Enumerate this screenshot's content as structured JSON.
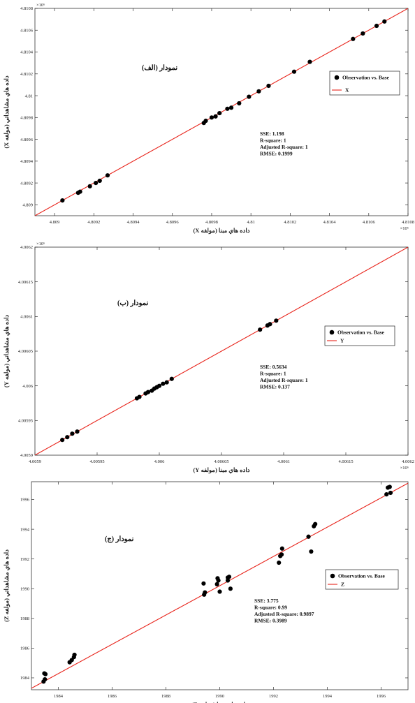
{
  "colors": {
    "points": "#000000",
    "fit_line": "#e8231a",
    "axes": "#333333",
    "background": "#ffffff"
  },
  "chart_data": [
    {
      "type": "scatter",
      "panel_label": "نمودار (الف)",
      "xlabel": "داده هاي مبنا (مولفه X)",
      "ylabel": "داده هاي مشاهداتي (مولفه X)",
      "x_exponent": "×10⁶",
      "y_exponent": "×10⁶",
      "xlim": [
        4.8089,
        4.8108
      ],
      "ylim": [
        4.8089,
        4.8108
      ],
      "x_ticks": [
        4.809,
        4.8092,
        4.8094,
        4.8096,
        4.8098,
        4.81,
        4.8102,
        4.8104,
        4.8106,
        4.8108
      ],
      "x_tick_labels": [
        "4.809",
        "4.8092",
        "4.8094",
        "4.8096",
        "4.8098",
        "4.81",
        "4.8102",
        "4.8104",
        "4.8106",
        "4.8108"
      ],
      "y_ticks": [
        4.809,
        4.8092,
        4.8094,
        4.8096,
        4.8098,
        4.81,
        4.8102,
        4.8104,
        4.8106,
        4.8108
      ],
      "y_tick_labels": [
        "4.809",
        "4.8092",
        "4.8094",
        "4.8096",
        "4.8098",
        "4.81",
        "4.8102",
        "4.8104",
        "4.8106",
        "4.8108"
      ],
      "legend": {
        "position": "top-right",
        "points_label": "Observation vs. Base",
        "line_label": "X"
      },
      "stats": [
        "SSE: 1.198",
        "R-square: 1",
        "Adjusted R-square: 1",
        "RMSE: 0.1999"
      ],
      "fit_line": {
        "x": [
          4.8089,
          4.8108
        ],
        "y": [
          4.8089,
          4.8108
        ]
      },
      "points": [
        [
          4.80904,
          4.80904
        ],
        [
          4.80912,
          4.80911
        ],
        [
          4.80913,
          4.80912
        ],
        [
          4.80918,
          4.80917
        ],
        [
          4.80921,
          4.8092
        ],
        [
          4.80923,
          4.80922
        ],
        [
          4.80927,
          4.80927
        ],
        [
          4.80976,
          4.80975
        ],
        [
          4.80977,
          4.80977
        ],
        [
          4.8098,
          4.8098
        ],
        [
          4.80982,
          4.80981
        ],
        [
          4.80984,
          4.80984
        ],
        [
          4.80988,
          4.80988
        ],
        [
          4.8099,
          4.80989
        ],
        [
          4.80994,
          4.80993
        ],
        [
          4.80999,
          4.80999
        ],
        [
          4.81004,
          4.81004
        ],
        [
          4.81009,
          4.81009
        ],
        [
          4.81022,
          4.81022
        ],
        [
          4.8103,
          4.81031
        ],
        [
          4.81052,
          4.81052
        ],
        [
          4.81057,
          4.81057
        ],
        [
          4.81064,
          4.81064
        ],
        [
          4.81068,
          4.81068
        ]
      ]
    },
    {
      "type": "scatter",
      "panel_label": "نمودار (ب)",
      "xlabel": "داده هاي مبنا (مولفه Y)",
      "ylabel": "داده هاي مشاهداتي (مولفه Y)",
      "x_exponent": "×10⁶",
      "y_exponent": "×10⁶",
      "xlim": [
        4.0059,
        4.0062
      ],
      "ylim": [
        4.0059,
        4.0062
      ],
      "x_ticks": [
        4.0059,
        4.00595,
        4.006,
        4.00605,
        4.0061,
        4.00615,
        4.0062
      ],
      "x_tick_labels": [
        "4.0059",
        "4.00595",
        "4.006",
        "4.00605",
        "4.0061",
        "4.00615",
        "4.0062"
      ],
      "y_ticks": [
        4.0059,
        4.00595,
        4.006,
        4.00605,
        4.0061,
        4.00615,
        4.0062
      ],
      "y_tick_labels": [
        "4.0059",
        "4.00595",
        "4.006",
        "4.00605",
        "4.0061",
        "4.00615",
        "4.0062"
      ],
      "legend": {
        "position": "top-right",
        "points_label": "Observation vs. Base",
        "line_label": "Y"
      },
      "stats": [
        "SSE: 0.5634",
        "R-square: 1",
        "Adjusted R-square: 1",
        "RMSE: 0.137"
      ],
      "fit_line": {
        "x": [
          4.0059,
          4.0062
        ],
        "y": [
          4.0059,
          4.0062
        ]
      },
      "points": [
        [
          4.005922,
          4.005922
        ],
        [
          4.005926,
          4.005926
        ],
        [
          4.00593,
          4.005931
        ],
        [
          4.005934,
          4.005934
        ],
        [
          4.005982,
          4.005982
        ],
        [
          4.005984,
          4.005984
        ],
        [
          4.005989,
          4.005989
        ],
        [
          4.005991,
          4.005991
        ],
        [
          4.005994,
          4.005993
        ],
        [
          4.005996,
          4.005996
        ],
        [
          4.005998,
          4.005998
        ],
        [
          4.006,
          4.006
        ],
        [
          4.006003,
          4.006003
        ],
        [
          4.006006,
          4.006005
        ],
        [
          4.00601,
          4.00601
        ],
        [
          4.006081,
          4.006081
        ],
        [
          4.006087,
          4.006087
        ],
        [
          4.006089,
          4.006089
        ],
        [
          4.006094,
          4.006094
        ]
      ]
    },
    {
      "type": "scatter",
      "panel_label": "نمودار (ج)",
      "xlabel": "داده هاي مبنا (مولفه Z)",
      "ylabel": "داده هاي مشاهداتي (مولفه Z)",
      "xlim": [
        1983,
        1997
      ],
      "ylim": [
        1983.2,
        1997.2
      ],
      "x_ticks": [
        1984,
        1986,
        1988,
        1990,
        1992,
        1994,
        1996
      ],
      "x_tick_labels": [
        "1984",
        "1986",
        "1988",
        "1990",
        "1992",
        "1994",
        "1996"
      ],
      "y_ticks": [
        1984,
        1986,
        1988,
        1990,
        1992,
        1994,
        1996
      ],
      "y_tick_labels": [
        "1984",
        "1986",
        "1988",
        "1990",
        "1992",
        "1994",
        "1996"
      ],
      "legend": {
        "position": "top-right",
        "points_label": "Observation vs. Base",
        "line_label": "Z"
      },
      "stats": [
        "SSE: 3.775",
        "R-square: 0.99",
        "Adjusted R-square: 0.9897",
        "RMSE: 0.3989"
      ],
      "fit_line": {
        "x": [
          1983,
          1997
        ],
        "y": [
          1983.3,
          1997.1
        ]
      },
      "points": [
        [
          1983.45,
          1983.75
        ],
        [
          1983.5,
          1983.9
        ],
        [
          1983.52,
          1984.25
        ],
        [
          1983.48,
          1984.3
        ],
        [
          1984.42,
          1985.05
        ],
        [
          1984.5,
          1985.2
        ],
        [
          1984.58,
          1985.4
        ],
        [
          1984.6,
          1985.55
        ],
        [
          1989.42,
          1989.6
        ],
        [
          1989.45,
          1989.75
        ],
        [
          1989.4,
          1990.35
        ],
        [
          1989.9,
          1990.3
        ],
        [
          1989.95,
          1990.55
        ],
        [
          1989.92,
          1990.7
        ],
        [
          1990.0,
          1989.8
        ],
        [
          1990.3,
          1990.55
        ],
        [
          1990.35,
          1990.8
        ],
        [
          1990.3,
          1990.75
        ],
        [
          1990.4,
          1990.0
        ],
        [
          1992.2,
          1991.75
        ],
        [
          1992.25,
          1992.2
        ],
        [
          1992.3,
          1992.3
        ],
        [
          1992.32,
          1992.7
        ],
        [
          1993.3,
          1993.5
        ],
        [
          1993.4,
          1992.5
        ],
        [
          1993.5,
          1994.2
        ],
        [
          1993.55,
          1994.35
        ],
        [
          1996.2,
          1996.35
        ],
        [
          1996.25,
          1996.8
        ],
        [
          1996.32,
          1996.85
        ],
        [
          1996.35,
          1996.45
        ]
      ]
    }
  ]
}
